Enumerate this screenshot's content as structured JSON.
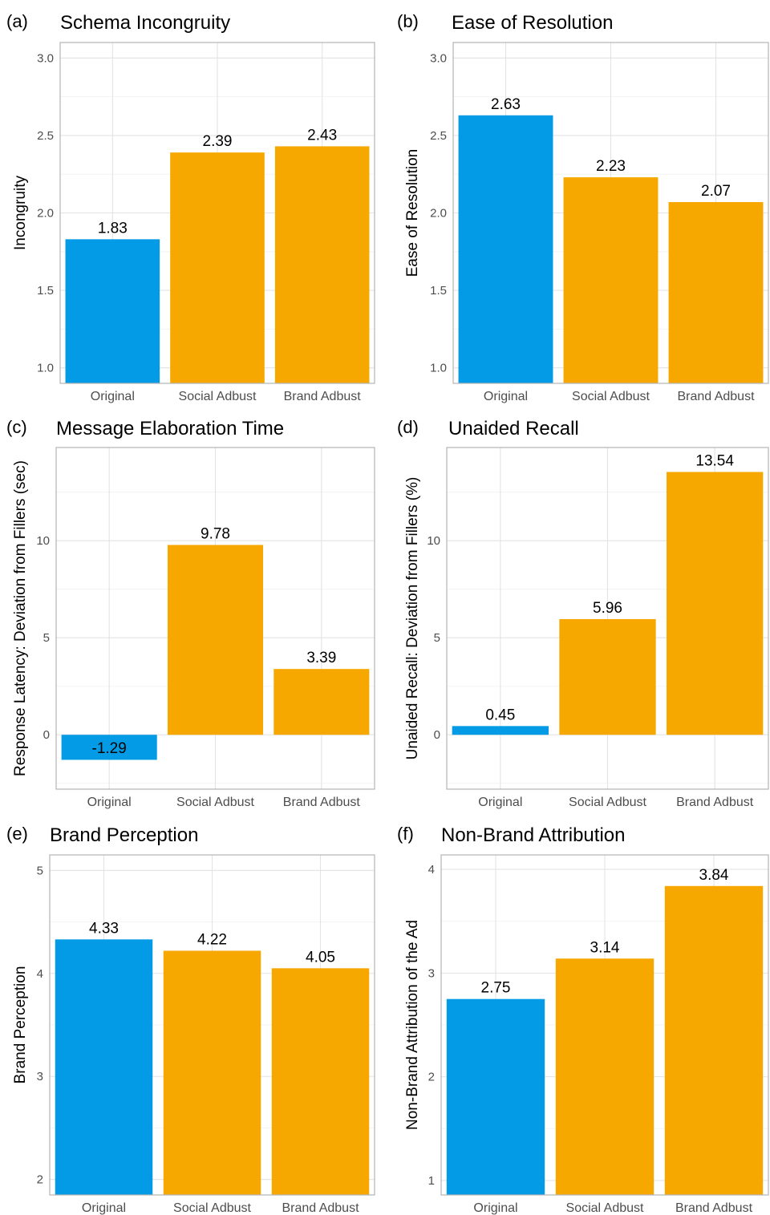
{
  "colors": {
    "original": "#039BE5",
    "adbust": "#F7A800",
    "grid": "#e3e3e3",
    "frame": "#b3b3b3"
  },
  "chart_data": [
    {
      "letter": "(a)",
      "title": "Schema Incongruity",
      "type": "bar",
      "categories": [
        "Original",
        "Social Adbust",
        "Brand Adbust"
      ],
      "values": [
        1.83,
        2.39,
        2.43
      ],
      "value_labels": [
        "1.83",
        "2.39",
        "2.43"
      ],
      "ylabel": "Incongruity",
      "ylim": [
        0.9,
        3.1
      ],
      "yticks": [
        1.0,
        1.5,
        2.0,
        2.5,
        3.0
      ],
      "ytick_labels": [
        "1.0",
        "1.5",
        "2.0",
        "2.5",
        "3.0"
      ],
      "baseline": 0.9,
      "grid": true
    },
    {
      "letter": "(b)",
      "title": "Ease of Resolution",
      "type": "bar",
      "categories": [
        "Original",
        "Social Adbust",
        "Brand Adbust"
      ],
      "values": [
        2.63,
        2.23,
        2.07
      ],
      "value_labels": [
        "2.63",
        "2.23",
        "2.07"
      ],
      "ylabel": "Ease of Resolution",
      "ylim": [
        0.9,
        3.1
      ],
      "yticks": [
        1.0,
        1.5,
        2.0,
        2.5,
        3.0
      ],
      "ytick_labels": [
        "1.0",
        "1.5",
        "2.0",
        "2.5",
        "3.0"
      ],
      "baseline": 0.9,
      "grid": true
    },
    {
      "letter": "(c)",
      "title": "Message Elaboration Time",
      "type": "bar",
      "categories": [
        "Original",
        "Social Adbust",
        "Brand Adbust"
      ],
      "values": [
        -1.29,
        9.78,
        3.39
      ],
      "value_labels": [
        "-1.29",
        "9.78",
        "3.39"
      ],
      "ylabel": "Response Latency: Deviation from Fillers (sec)",
      "ylim": [
        -2.8,
        14.8
      ],
      "yticks": [
        0,
        5,
        10
      ],
      "ytick_labels": [
        "0",
        "5",
        "10"
      ],
      "baseline": 0,
      "grid": true
    },
    {
      "letter": "(d)",
      "title": "Unaided Recall",
      "type": "bar",
      "categories": [
        "Original",
        "Social Adbust",
        "Brand Adbust"
      ],
      "values": [
        0.45,
        5.96,
        13.54
      ],
      "value_labels": [
        "0.45",
        "5.96",
        "13.54"
      ],
      "ylabel": "Unaided Recall: Deviation from Fillers (%)",
      "ylim": [
        -2.8,
        14.8
      ],
      "yticks": [
        0,
        5,
        10
      ],
      "ytick_labels": [
        "0",
        "5",
        "10"
      ],
      "baseline": 0,
      "grid": true
    },
    {
      "letter": "(e)",
      "title": "Brand Perception",
      "type": "bar",
      "categories": [
        "Original",
        "Social Adbust",
        "Brand Adbust"
      ],
      "values": [
        4.33,
        4.22,
        4.05
      ],
      "value_labels": [
        "4.33",
        "4.22",
        "4.05"
      ],
      "ylabel": "Brand Perception",
      "ylim": [
        1.85,
        5.15
      ],
      "yticks": [
        2,
        3,
        4,
        5
      ],
      "ytick_labels": [
        "2",
        "3",
        "4",
        "5"
      ],
      "baseline": 1.85,
      "grid": true
    },
    {
      "letter": "(f)",
      "title": "Non-Brand Attribution",
      "type": "bar",
      "categories": [
        "Original",
        "Social Adbust",
        "Brand Adbust"
      ],
      "values": [
        2.75,
        3.14,
        3.84
      ],
      "value_labels": [
        "2.75",
        "3.14",
        "3.84"
      ],
      "ylabel": "Non-Brand Attribution of the Ad",
      "ylim": [
        0.86,
        4.14
      ],
      "yticks": [
        1,
        2,
        3,
        4
      ],
      "ytick_labels": [
        "1",
        "2",
        "3",
        "4"
      ],
      "baseline": 0.86,
      "grid": true
    }
  ]
}
